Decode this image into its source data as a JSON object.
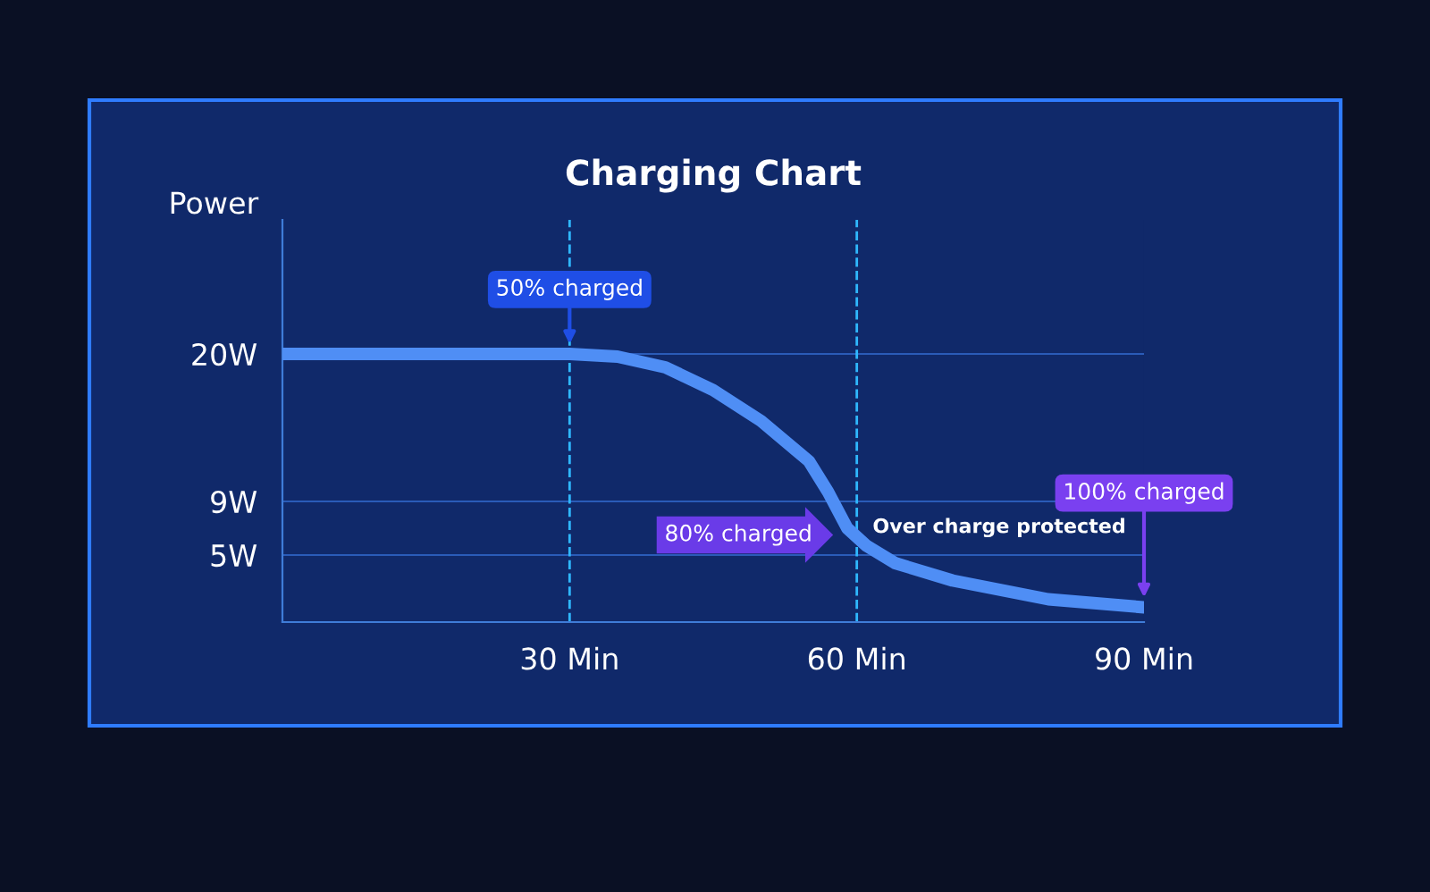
{
  "chart_data": {
    "type": "line",
    "title": "Charging Chart",
    "ylabel": "Power",
    "x": [
      0,
      10,
      20,
      30,
      35,
      40,
      45,
      50,
      55,
      57,
      59,
      61,
      64,
      70,
      80,
      90
    ],
    "series": [
      {
        "color": "#4f8ef5",
        "values": [
          20,
          20,
          20,
          20,
          19.8,
          19,
          17.3,
          15,
          12,
          9.7,
          7,
          5.7,
          4.4,
          3.1,
          1.7,
          1.1
        ]
      }
    ],
    "xlim": [
      0,
      90
    ],
    "ylim": [
      0,
      30
    ],
    "xticks": [
      {
        "value": 30,
        "label": "30 Min"
      },
      {
        "value": 60,
        "label": "60 Min"
      },
      {
        "value": 90,
        "label": "90 Min"
      }
    ],
    "yticks": [
      {
        "value": 5,
        "label": "5W"
      },
      {
        "value": 9,
        "label": "9W"
      },
      {
        "value": 20,
        "label": "20W"
      }
    ],
    "ref_lines": [
      {
        "axis": "x",
        "value": 30,
        "color": "#2fb8ff",
        "line_style": "dashed"
      },
      {
        "axis": "x",
        "value": 60,
        "color": "#2fb8ff",
        "line_style": "dashed"
      }
    ],
    "annotations": [
      {
        "text": "50% charged",
        "x": 30,
        "y": 20
      },
      {
        "text": "80% charged",
        "x": 59.5,
        "y": 6.5
      },
      "Over charge protected",
      {
        "text": "100% charged",
        "x": 90,
        "y": 1.1
      }
    ],
    "grid": "y",
    "marker": "none",
    "line_style": "solid",
    "legend": false
  }
}
